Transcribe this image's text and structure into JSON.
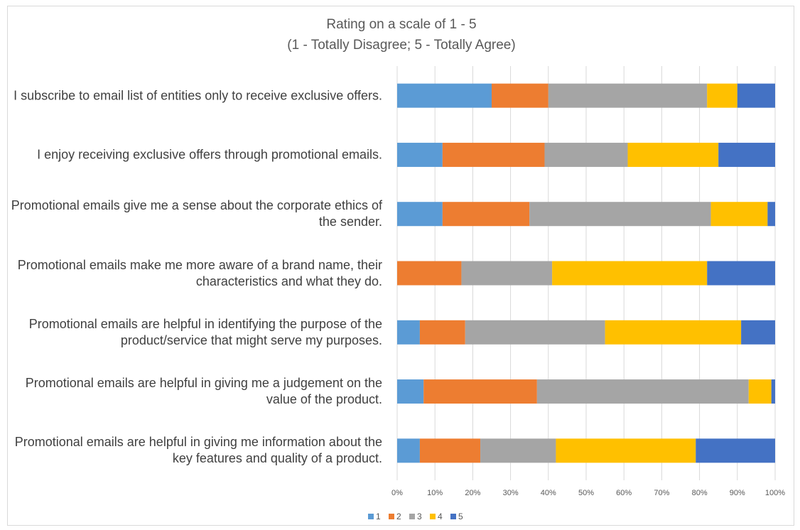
{
  "chart_data": {
    "type": "stacked_bar_horizontal_percent",
    "title": "Rating on a scale of 1 - 5",
    "subtitle": "(1 - Totally Disagree; 5 - Totally Agree)",
    "categories": [
      "I subscribe to email list of entities only to receive exclusive offers.",
      "I enjoy receiving exclusive offers through promotional emails.",
      "Promotional emails give me a sense about the corporate ethics of the sender.",
      "Promotional emails make me more aware of a brand name, their characteristics and what they do.",
      "Promotional emails are helpful in identifying the purpose of the product/service that might serve my purposes.",
      "Promotional emails are helpful in giving me a judgement on the value of the product.",
      "Promotional emails are helpful in giving me information about the key features and quality of a product."
    ],
    "series": [
      {
        "name": "1",
        "color": "#5b9bd5",
        "values": [
          25,
          12,
          12,
          0,
          6,
          7,
          6
        ]
      },
      {
        "name": "2",
        "color": "#ed7d31",
        "values": [
          15,
          27,
          23,
          17,
          12,
          30,
          16
        ]
      },
      {
        "name": "3",
        "color": "#a5a5a5",
        "values": [
          42,
          22,
          48,
          24,
          37,
          56,
          20
        ]
      },
      {
        "name": "4",
        "color": "#ffc000",
        "values": [
          8,
          24,
          15,
          41,
          36,
          6,
          37
        ]
      },
      {
        "name": "5",
        "color": "#4472c4",
        "values": [
          10,
          15,
          2,
          18,
          9,
          1,
          21
        ]
      }
    ],
    "xlim": [
      0,
      100
    ],
    "xticks": [
      {
        "value": 0,
        "label": "0%"
      },
      {
        "value": 10,
        "label": "10%"
      },
      {
        "value": 20,
        "label": "20%"
      },
      {
        "value": 30,
        "label": "30%"
      },
      {
        "value": 40,
        "label": "40%"
      },
      {
        "value": 50,
        "label": "50%"
      },
      {
        "value": 60,
        "label": "60%"
      },
      {
        "value": 70,
        "label": "70%"
      },
      {
        "value": 80,
        "label": "80%"
      },
      {
        "value": 90,
        "label": "90%"
      },
      {
        "value": 100,
        "label": "100%"
      }
    ],
    "grid": true,
    "legend": "bottom"
  }
}
